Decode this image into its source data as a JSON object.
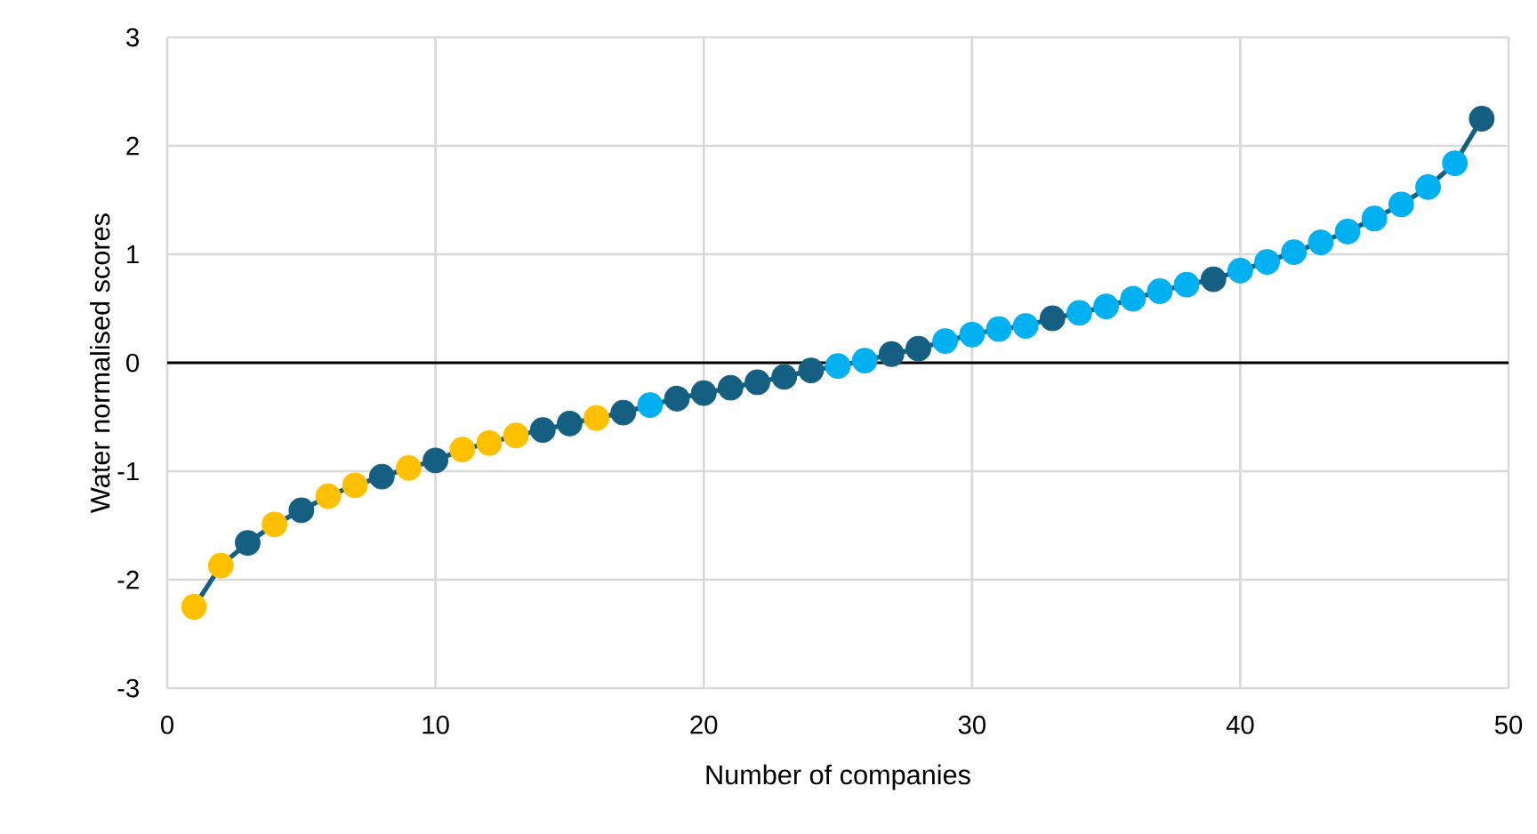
{
  "chart_data": {
    "type": "line",
    "xlabel": "Number of companies",
    "ylabel": "Water normalised scores",
    "x": [
      1,
      2,
      3,
      4,
      5,
      6,
      7,
      8,
      9,
      10,
      11,
      12,
      13,
      14,
      15,
      16,
      17,
      18,
      19,
      20,
      21,
      22,
      23,
      24,
      25,
      26,
      27,
      28,
      29,
      30,
      31,
      32,
      33,
      34,
      35,
      36,
      37,
      38,
      39,
      40,
      41,
      42,
      43,
      44,
      45,
      46,
      47,
      48,
      49
    ],
    "series": [
      {
        "color": "#156082",
        "values": [
          -2.25,
          -1.87,
          -1.66,
          -1.49,
          -1.36,
          -1.23,
          -1.13,
          -1.05,
          -0.97,
          -0.9,
          -0.8,
          -0.74,
          -0.67,
          -0.62,
          -0.56,
          -0.51,
          -0.46,
          -0.39,
          -0.33,
          -0.28,
          -0.23,
          -0.18,
          -0.13,
          -0.07,
          -0.03,
          0.02,
          0.08,
          0.13,
          0.2,
          0.26,
          0.31,
          0.34,
          0.41,
          0.46,
          0.52,
          0.59,
          0.66,
          0.72,
          0.77,
          0.85,
          0.93,
          1.02,
          1.11,
          1.21,
          1.33,
          1.46,
          1.62,
          1.84,
          2.25
        ],
        "colors": [
          "#ffc000",
          "#ffc000",
          "#156082",
          "#ffc000",
          "#156082",
          "#ffc000",
          "#ffc000",
          "#156082",
          "#ffc000",
          "#156082",
          "#ffc000",
          "#ffc000",
          "#ffc000",
          "#156082",
          "#156082",
          "#ffc000",
          "#156082",
          "#00b0f0",
          "#156082",
          "#156082",
          "#156082",
          "#156082",
          "#156082",
          "#156082",
          "#00b0f0",
          "#00b0f0",
          "#156082",
          "#156082",
          "#00b0f0",
          "#00b0f0",
          "#00b0f0",
          "#00b0f0",
          "#156082",
          "#00b0f0",
          "#00b0f0",
          "#00b0f0",
          "#00b0f0",
          "#00b0f0",
          "#156082",
          "#00b0f0",
          "#00b0f0",
          "#00b0f0",
          "#00b0f0",
          "#00b0f0",
          "#00b0f0",
          "#00b0f0",
          "#00b0f0",
          "#00b0f0",
          "#156082"
        ]
      }
    ],
    "xlim": [
      0,
      50
    ],
    "xticks": [
      0,
      10,
      20,
      30,
      40,
      50
    ],
    "ylim": [
      -3,
      3
    ],
    "yticks": [
      -3,
      -2,
      -1,
      0,
      1,
      2,
      3
    ],
    "ref_lines": [
      {
        "axis": "y",
        "value": 0,
        "color": "#000000"
      }
    ],
    "grid": true,
    "marker": "circle",
    "line_style": "solid"
  }
}
